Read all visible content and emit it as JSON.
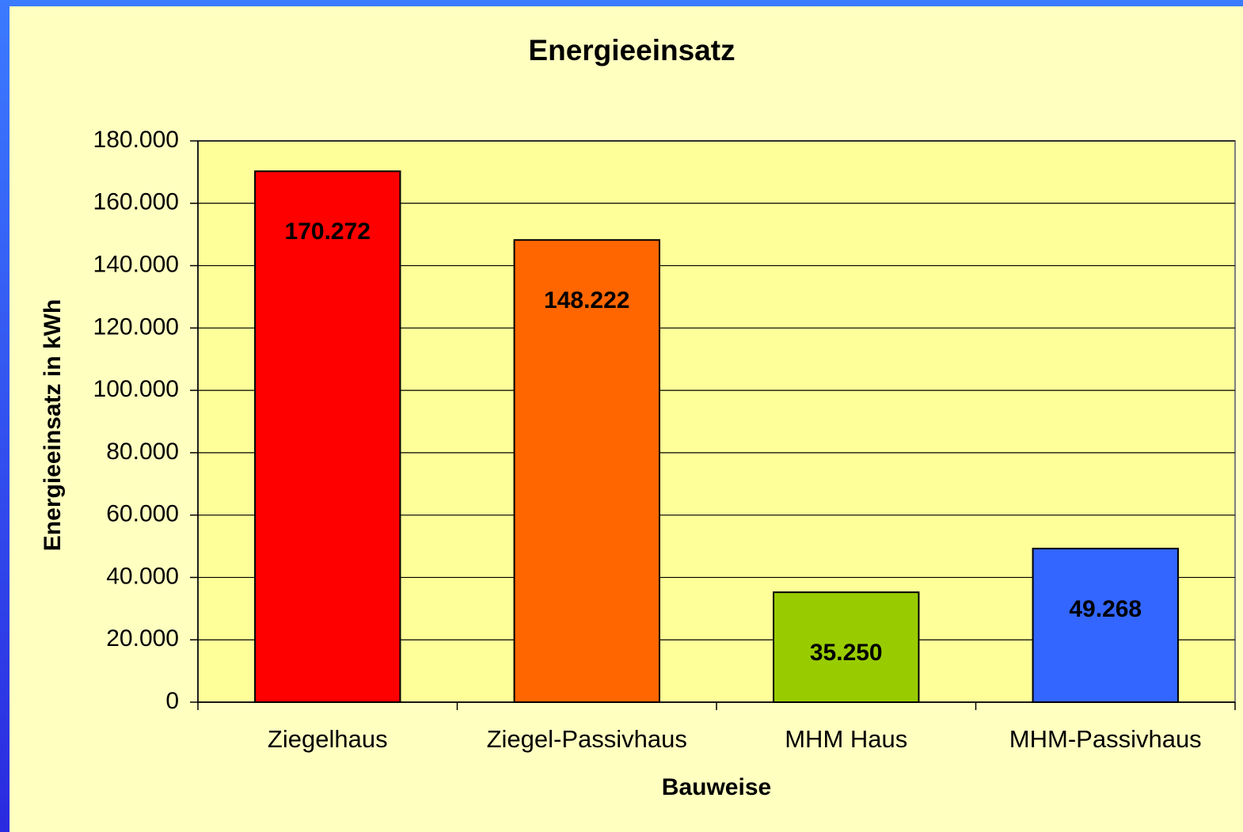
{
  "chart_data": {
    "type": "bar",
    "title": "Energieeinsatz",
    "x_label": "Bauweise",
    "y_label": "Energieeinsatz in  kWh",
    "categories": [
      "Ziegelhaus",
      "Ziegel-Passivhaus",
      "MHM Haus",
      "MHM-Passivhaus"
    ],
    "values": [
      170272,
      148222,
      35250,
      49268
    ],
    "value_labels": [
      "170.272",
      "148.222",
      "35.250",
      "49.268"
    ],
    "colors": [
      "#ff0000",
      "#ff6600",
      "#99cc00",
      "#3366ff"
    ],
    "ylim": [
      0,
      180000
    ],
    "yticks": [
      0,
      {
        "value": 20000,
        "label": "20.000"
      },
      {
        "value": 40000,
        "label": "40.000"
      },
      {
        "value": 60000,
        "label": "60.000"
      },
      {
        "value": 80000,
        "label": "80.000"
      },
      {
        "value": 100000,
        "label": "100.000"
      },
      {
        "value": 120000,
        "label": "120.000"
      },
      {
        "value": 140000,
        "label": "140.000"
      },
      {
        "value": 160000,
        "label": "160.000"
      },
      {
        "value": 180000,
        "label": "180.000"
      }
    ],
    "grid": true
  }
}
